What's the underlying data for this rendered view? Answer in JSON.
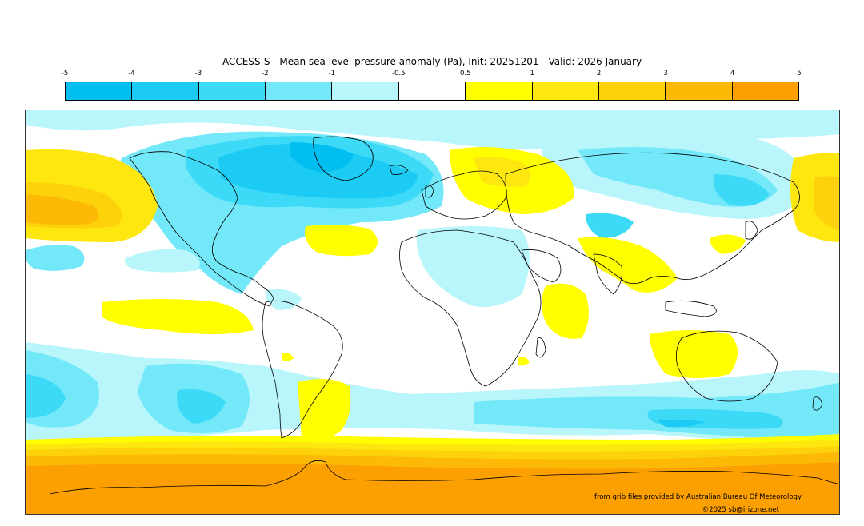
{
  "title": "ACCESS-S - Mean sea level pressure anomaly (Pa), Init: 20251201 - Valid: 2026 January",
  "colorbar": {
    "ticks": [
      "-5",
      "-4",
      "-3",
      "-2",
      "-1",
      "-0.5",
      "0.5",
      "1",
      "2",
      "3",
      "4",
      "5"
    ],
    "colors": [
      "#00bff0",
      "#1ccbf3",
      "#3cdaf6",
      "#72e8f8",
      "#b8f6fb",
      "#ffffff",
      "#ffff00",
      "#fde70e",
      "#fdd20a",
      "#fcb906",
      "#fc9f00"
    ]
  },
  "palette": {
    "neg_0_5": "#b8f6fb",
    "neg_1": "#72e8f8",
    "neg_2": "#3cdaf6",
    "neg_3": "#1ccbf3",
    "neg_4": "#00bff0",
    "pos_0_5": "#ffff00",
    "pos_1": "#fde70e",
    "pos_2": "#fdd20a",
    "pos_3": "#fcb906",
    "pos_4": "#fc9f00"
  },
  "credits": {
    "line1": "from grib files provided by Australian Bureau Of Meteorology",
    "line2": "©2025 sb@irizone.net"
  }
}
